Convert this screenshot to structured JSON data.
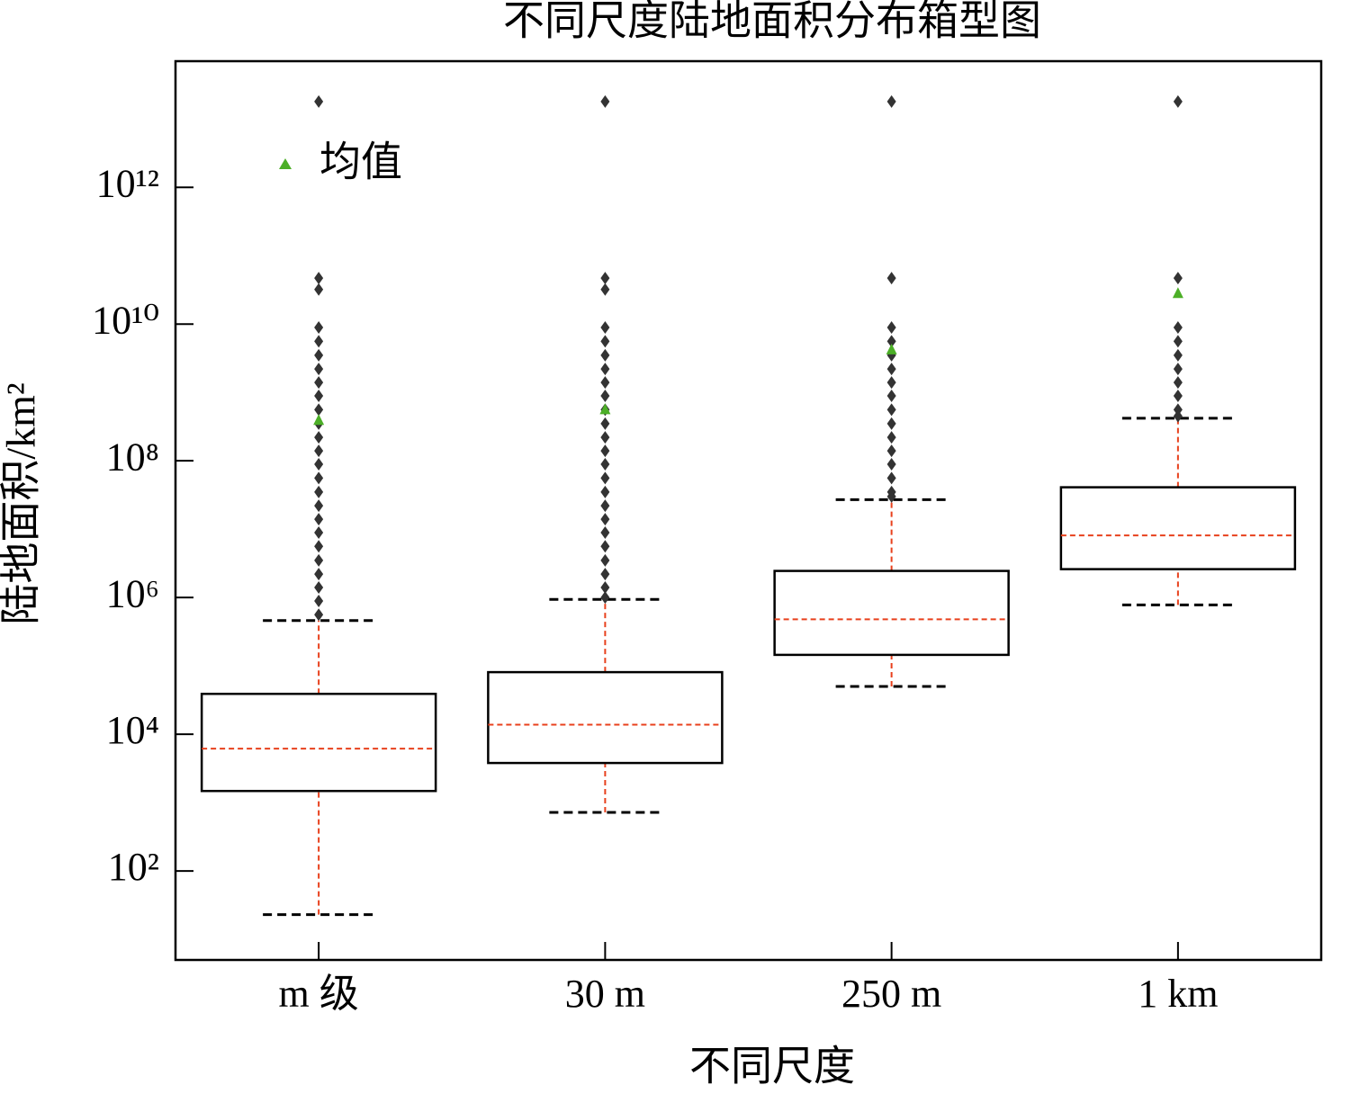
{
  "chart_data": {
    "type": "box",
    "title": "不同尺度陆地面积分布箱型图",
    "xlabel": "不同尺度",
    "ylabel": "陆地面积/km²",
    "categories": [
      "m 级",
      "30 m",
      "250 m",
      "1 km"
    ],
    "yscale": "log",
    "ylim": [
      5,
      70000000000000
    ],
    "yticks": [
      {
        "value": 100,
        "label": "10²"
      },
      {
        "value": 10000,
        "label": "10⁴"
      },
      {
        "value": 1000000,
        "label": "10⁶"
      },
      {
        "value": 100000000,
        "label": "10⁸"
      },
      {
        "value": 10000000000,
        "label": "10¹⁰"
      },
      {
        "value": 1000000000000,
        "label": "10¹²"
      }
    ],
    "box_color": "#000000",
    "median_color": "#e8401c",
    "outlier_color": "#333333",
    "mean_color": "#4caf27",
    "legend": {
      "label": "均值",
      "loc": "upper left"
    },
    "boxes": [
      {
        "whislo": 23,
        "q1": 1480,
        "med": 6160,
        "q3": 39000,
        "whishi": 460000,
        "mean": 390000000,
        "outliers": [
          18000000000000,
          47000000000,
          32000000000,
          8900000000,
          5600000000,
          3500000000,
          2200000000,
          1400000000,
          890000000,
          560000000,
          350000000,
          220000000,
          140000000,
          89000000,
          56000000,
          35000000,
          22000000,
          14000000,
          8900000,
          5600000,
          3500000,
          2200000,
          1400000,
          890000,
          560000
        ]
      },
      {
        "whislo": 720,
        "q1": 3800,
        "med": 13800,
        "q3": 81000,
        "whishi": 940000,
        "mean": 560000000,
        "outliers": [
          18000000000000,
          47000000000,
          32000000000,
          8900000000,
          5600000000,
          3500000000,
          2200000000,
          1400000000,
          890000000,
          560000000,
          350000000,
          220000000,
          140000000,
          89000000,
          56000000,
          35000000,
          22000000,
          14000000,
          8900000,
          5600000,
          3500000,
          2200000,
          1400000,
          1000000
        ]
      },
      {
        "whislo": 50000,
        "q1": 145000,
        "med": 480000,
        "q3": 2450000,
        "whishi": 27000000,
        "mean": 4200000000,
        "outliers": [
          18000000000000,
          47000000000,
          8900000000,
          5600000000,
          3500000000,
          2200000000,
          1400000000,
          890000000,
          560000000,
          350000000,
          220000000,
          140000000,
          89000000,
          56000000,
          35000000,
          30000000
        ]
      },
      {
        "whislo": 780000,
        "q1": 2600000,
        "med": 8100000,
        "q3": 41000000,
        "whishi": 420000000,
        "mean": 28000000000,
        "outliers": [
          18000000000000,
          47000000000,
          8900000000,
          5600000000,
          3500000000,
          2200000000,
          1400000000,
          890000000,
          560000000,
          450000000
        ]
      }
    ]
  }
}
